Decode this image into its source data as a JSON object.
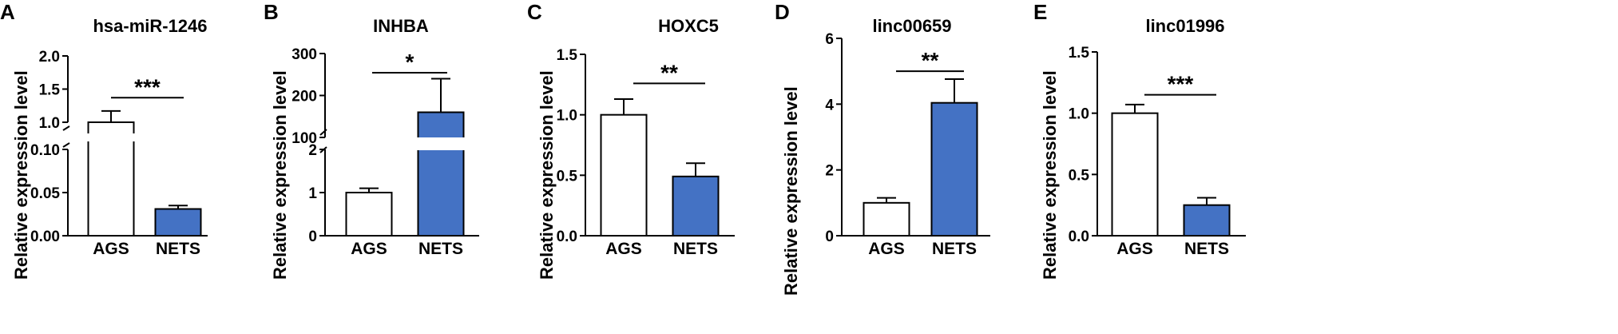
{
  "colors": {
    "ags": "#ffffff",
    "nets": "#4472c4",
    "stroke": "#000000"
  },
  "chart_data": [
    {
      "panel": "A",
      "type": "bar",
      "title": "hsa-miR-1246",
      "ylabel": "Relative expression level",
      "categories": [
        "AGS",
        "NETS"
      ],
      "values": [
        1.0,
        0.031
      ],
      "error": [
        0.17,
        0.004
      ],
      "significance": "***",
      "broken_axis": true,
      "ticks_lower": [
        "0.00",
        "0.05",
        "0.10"
      ],
      "ticks_upper": [
        "1.0",
        "1.5",
        "2.0"
      ]
    },
    {
      "panel": "B",
      "type": "bar",
      "title": "INHBA",
      "ylabel": "Relative expression level",
      "categories": [
        "AGS",
        "NETS"
      ],
      "values": [
        1.0,
        160
      ],
      "error": [
        0.1,
        80
      ],
      "significance": "*",
      "broken_axis": true,
      "ticks_lower": [
        "0",
        "1",
        "2"
      ],
      "ticks_upper": [
        "100",
        "200",
        "300"
      ]
    },
    {
      "panel": "C",
      "type": "bar",
      "title": "HOXC5",
      "ylabel": "Relative expression level",
      "categories": [
        "AGS",
        "NETS"
      ],
      "values": [
        1.0,
        0.49
      ],
      "error": [
        0.13,
        0.11
      ],
      "significance": "**",
      "ylim": [
        0,
        1.5
      ],
      "ticks": [
        "0.0",
        "0.5",
        "1.0",
        "1.5"
      ]
    },
    {
      "panel": "D",
      "type": "bar",
      "title": "linc00659",
      "ylabel": "Relative expression level",
      "categories": [
        "AGS",
        "NETS"
      ],
      "values": [
        1.0,
        4.04
      ],
      "error": [
        0.15,
        0.72
      ],
      "significance": "**",
      "ylim": [
        0,
        6
      ],
      "ticks": [
        "0",
        "2",
        "4",
        "6"
      ]
    },
    {
      "panel": "E",
      "type": "bar",
      "title": "linc01996",
      "ylabel": "Relative expression level",
      "categories": [
        "AGS",
        "NETS"
      ],
      "values": [
        1.0,
        0.25
      ],
      "error": [
        0.07,
        0.06
      ],
      "significance": "***",
      "ylim": [
        0,
        1.5
      ],
      "ticks": [
        "0.0",
        "0.5",
        "1.0",
        "1.5"
      ]
    }
  ]
}
